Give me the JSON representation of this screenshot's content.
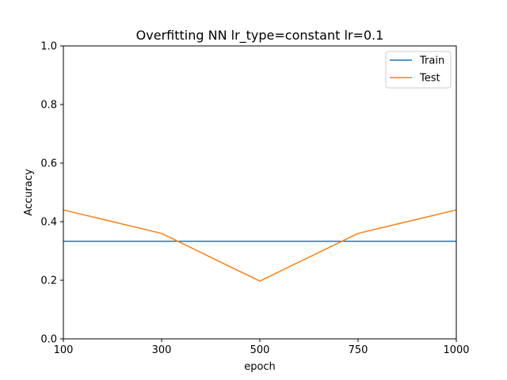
{
  "chart_data": {
    "type": "line",
    "title": "Overfitting NN lr_type=constant lr=0.1",
    "xlabel": "epoch",
    "ylabel": "Accuracy",
    "x_ticks": [
      "100",
      "300",
      "500",
      "750",
      "1000"
    ],
    "y_ticks": [
      "0.0",
      "0.2",
      "0.4",
      "0.6",
      "0.8",
      "1.0"
    ],
    "ylim": [
      0,
      1
    ],
    "grid": false,
    "legend_position": "top-right",
    "series": [
      {
        "name": "Train",
        "color": "#1f77b4",
        "values": [
          0.333,
          0.333,
          0.333,
          0.333,
          0.333
        ]
      },
      {
        "name": "Test",
        "color": "#ff7f0e",
        "values": [
          0.44,
          0.36,
          0.197,
          0.36,
          0.44
        ]
      }
    ]
  }
}
